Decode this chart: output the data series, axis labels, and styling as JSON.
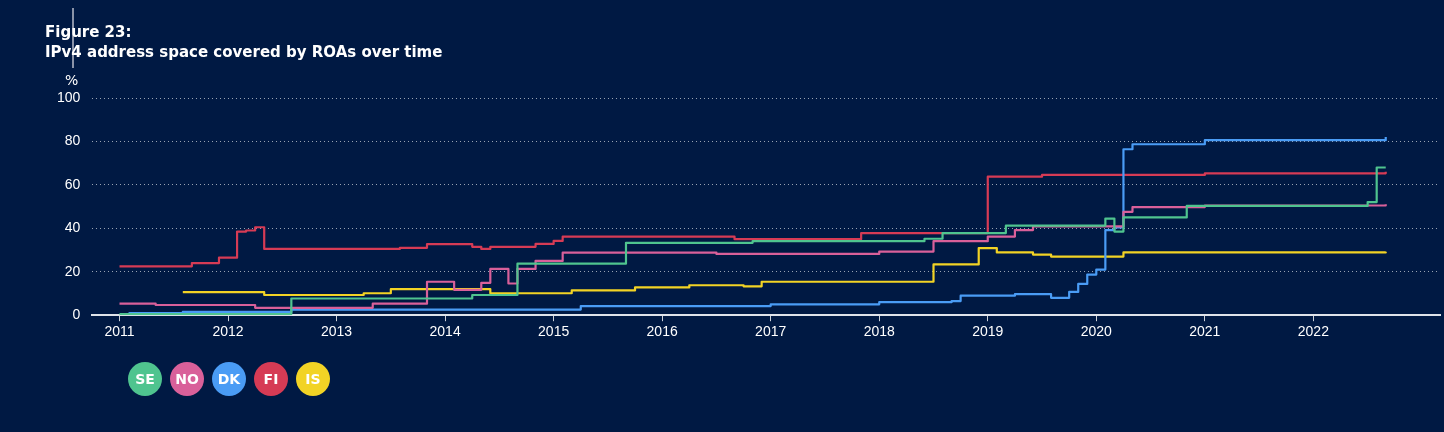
{
  "chart_data": {
    "type": "step",
    "title": "Figure 23:",
    "subtitle": "IPv4 address space covered by ROAs over time",
    "ylabel": "%",
    "xlim": [
      "2010-10",
      "2023-03"
    ],
    "xticks": [
      "2011",
      "2012",
      "2013",
      "2014",
      "2015",
      "2016",
      "2017",
      "2018",
      "2019",
      "2020",
      "2021",
      "2022"
    ],
    "ylim": [
      0,
      100
    ],
    "yticks": [
      0,
      20,
      40,
      60,
      80,
      100
    ],
    "grid": "y",
    "legend": "bottom left",
    "marker": "none",
    "line_style": "solid",
    "series": [
      {
        "name": "SE",
        "color": "#4fc48f",
        "x": [
          "2011-01",
          "2012-08",
          "2014-04",
          "2014-09",
          "2015-09",
          "2016-11",
          "2018-06",
          "2018-08",
          "2019-03",
          "2020-02",
          "2020-03",
          "2020-04",
          "2020-11",
          "2022-07",
          "2022-08",
          "2022-09"
        ],
        "values": [
          0.5,
          7.7,
          9.3,
          23.7,
          33.3,
          34.1,
          35.2,
          37.8,
          41.2,
          44.5,
          38.5,
          45,
          50.3,
          52.1,
          68,
          68
        ]
      },
      {
        "name": "NO",
        "color": "#d9609a",
        "x": [
          "2011-01",
          "2011-05",
          "2012-04",
          "2013-05",
          "2013-08",
          "2013-11",
          "2014-02",
          "2014-05",
          "2014-06",
          "2014-08",
          "2014-09",
          "2014-11",
          "2015-02",
          "2016-07",
          "2018-01",
          "2018-07",
          "2019-01",
          "2019-04",
          "2019-06",
          "2020-04",
          "2020-05",
          "2021-01",
          "2022-09"
        ],
        "values": [
          5.3,
          4.7,
          3.4,
          5.3,
          5.3,
          15.4,
          11.7,
          14.9,
          21.3,
          14.6,
          21.3,
          25,
          28.8,
          28.2,
          29.3,
          34.1,
          36.2,
          39.2,
          40.9,
          47.6,
          49.8,
          50.5,
          51.1
        ]
      },
      {
        "name": "DK",
        "color": "#4a9cf5",
        "x": [
          "2011-02",
          "2011-08",
          "2012-08",
          "2015-04",
          "2017-01",
          "2018-01",
          "2018-09",
          "2018-10",
          "2019-04",
          "2019-08",
          "2019-10",
          "2019-11",
          "2019-12",
          "2020-01",
          "2020-02",
          "2020-03",
          "2020-04",
          "2020-05",
          "2021-01",
          "2022-09"
        ],
        "values": [
          1,
          1.5,
          2.6,
          4.2,
          5,
          6,
          6.5,
          9,
          9.7,
          8,
          10.7,
          14.4,
          18.7,
          21,
          39.2,
          40.4,
          76.4,
          78.7,
          80.6,
          82
        ]
      },
      {
        "name": "FI",
        "color": "#d63b55",
        "x": [
          "2011-01",
          "2011-09",
          "2011-12",
          "2012-02",
          "2012-03",
          "2012-04",
          "2012-05",
          "2013-08",
          "2013-11",
          "2014-04",
          "2014-05",
          "2014-06",
          "2014-11",
          "2015-01",
          "2015-02",
          "2016-09",
          "2017-11",
          "2019-01",
          "2019-07",
          "2021-01",
          "2022-09"
        ],
        "values": [
          22.5,
          24,
          26.5,
          38.5,
          39,
          40.5,
          30.5,
          31,
          32.7,
          31.5,
          30.5,
          31.5,
          32.8,
          34.2,
          36.2,
          35,
          37.8,
          63.8,
          64.6,
          65.3,
          66
        ]
      },
      {
        "name": "IS",
        "color": "#f2d325",
        "x": [
          "2011-08",
          "2012-05",
          "2013-04",
          "2013-07",
          "2014-06",
          "2015-03",
          "2015-10",
          "2016-04",
          "2016-10",
          "2016-12",
          "2018-07",
          "2018-12",
          "2019-02",
          "2019-06",
          "2019-08",
          "2020-04",
          "2022-09"
        ],
        "values": [
          10.6,
          9.3,
          10.1,
          12,
          10.1,
          11.4,
          12.8,
          13.8,
          13.3,
          15.4,
          23.4,
          30.9,
          28.9,
          27.9,
          27,
          28.9,
          29.2
        ]
      }
    ]
  }
}
